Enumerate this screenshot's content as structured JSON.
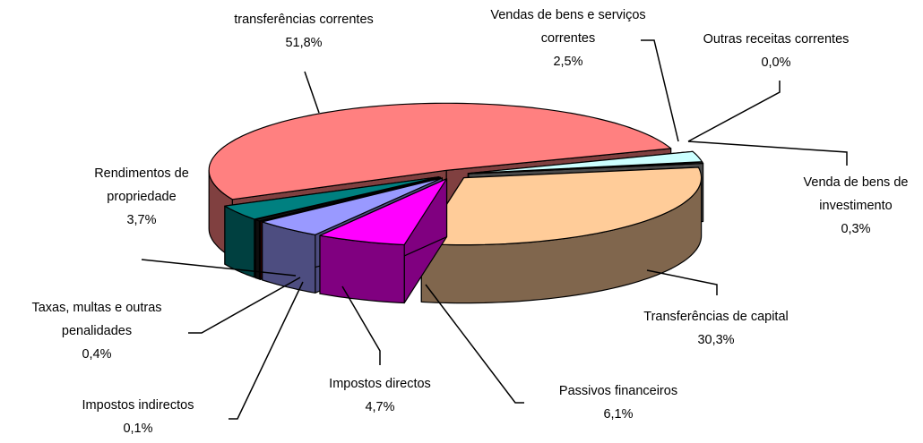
{
  "chart_data": {
    "type": "pie",
    "categories": [
      "Vendas de bens e serviços correntes",
      "Outras receitas correntes",
      "Venda de bens de investimento",
      "Transferências de capital",
      "Passivos financeiros",
      "Impostos directos",
      "Impostos indirectos",
      "Taxas, multas e outras penalidades",
      "Rendimentos de propriedade",
      "transferências correntes"
    ],
    "values": [
      2.5,
      0.0,
      0.3,
      30.3,
      6.1,
      4.7,
      0.1,
      0.4,
      3.7,
      51.8
    ],
    "value_labels": [
      "2,5%",
      "0,0%",
      "0,3%",
      "30,3%",
      "6,1%",
      "4,7%",
      "0,1%",
      "0,4%",
      "3,7%",
      "51,8%"
    ],
    "colors": [
      "#ccffff",
      "#ffff99",
      "#969696",
      "#ffcc99",
      "#ff00ff",
      "#9999ff",
      "#800000",
      "#1a1a1a",
      "#008080",
      "#ff8080"
    ]
  }
}
